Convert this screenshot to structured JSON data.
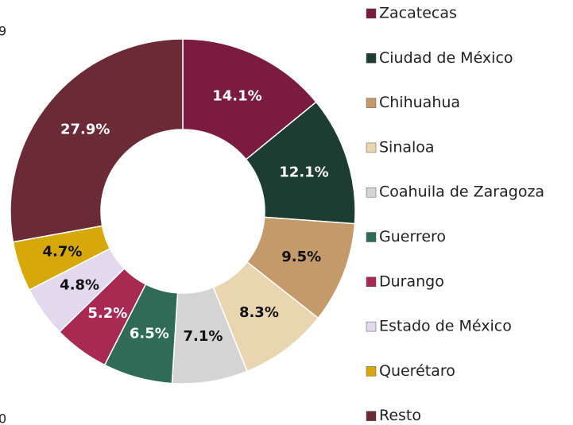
{
  "chart_data": {
    "type": "donut",
    "categories": [
      "Zacatecas",
      "Ciudad de México",
      "Chihuahua",
      "Sinaloa",
      "Coahuila de Zaragoza",
      "Guerrero",
      "Durango",
      "Estado de México",
      "Querétaro",
      "Resto"
    ],
    "values": [
      14.1,
      12.1,
      9.5,
      8.3,
      7.1,
      6.5,
      5.2,
      4.8,
      4.7,
      27.9
    ],
    "value_labels": [
      "14.1%",
      "12.1%",
      "9.5%",
      "8.3%",
      "7.1%",
      "6.5%",
      "5.2%",
      "4.8%",
      "4.7%",
      "27.9%"
    ],
    "colors": [
      "#7b1b40",
      "#1d3c32",
      "#c49a6a",
      "#e9d6b0",
      "#d4d4d4",
      "#2f6b56",
      "#a82a52",
      "#e2d9ee",
      "#d6a80a",
      "#6a2a36"
    ],
    "legend": "right",
    "annotations": [
      "9",
      "0"
    ]
  }
}
